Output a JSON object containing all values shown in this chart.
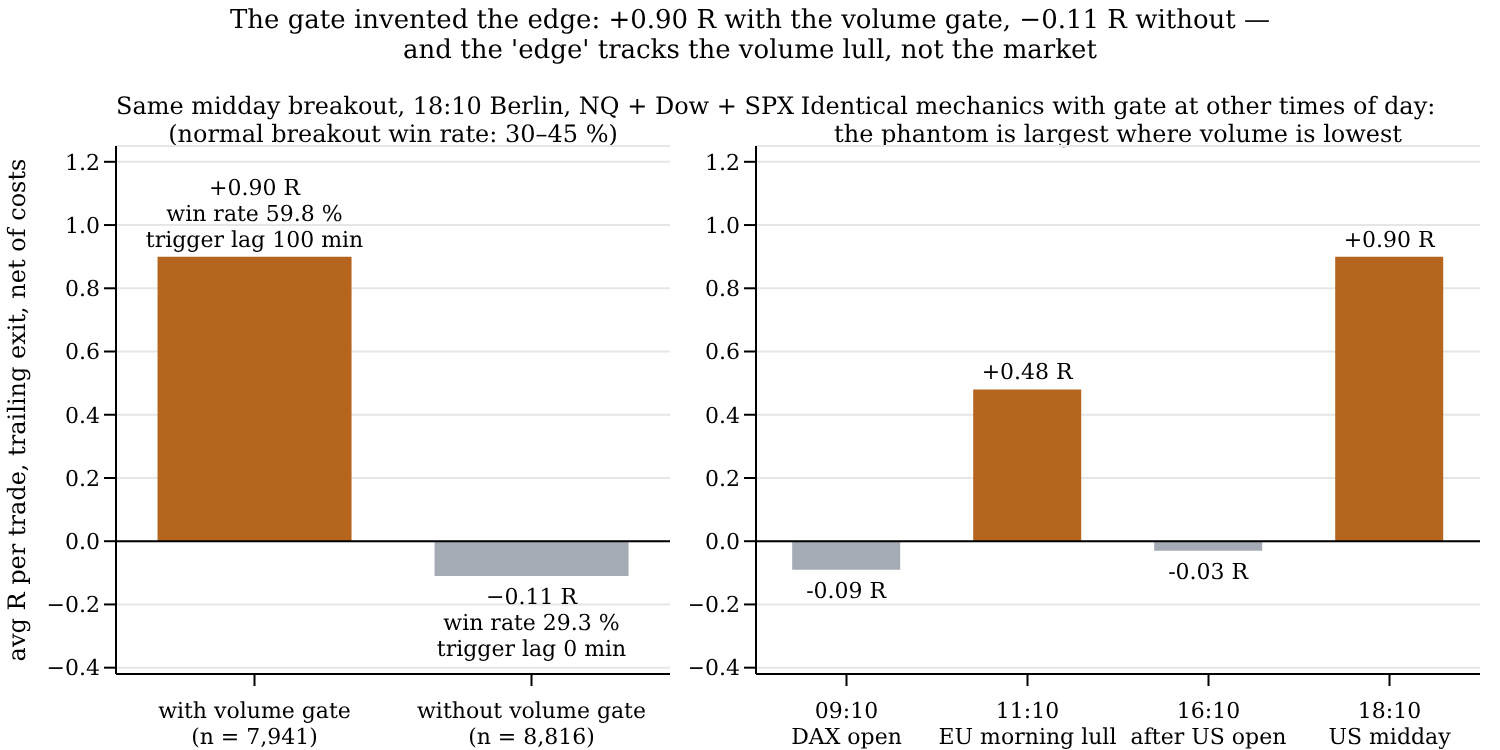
{
  "chart_data": [
    {
      "type": "bar",
      "title": "The gate invented the edge: +0.90 R with the volume gate, −0.11 R without —\nand the 'edge' tracks the volume lull, not the market",
      "subtitle": "Same midday breakout, 18:10 Berlin, NQ + Dow + SPX\n(normal breakout win rate: 30–45 %)",
      "ylabel": "avg R per trade, trailing exit, net of costs",
      "categories": [
        "with volume gate\n(n = 7,941)",
        "without volume gate\n(n = 8,816)"
      ],
      "values": [
        0.9,
        -0.11
      ],
      "colors": [
        "#b5651d",
        "#a4abb4"
      ],
      "value_labels": [
        "+0.90 R\nwin rate 59.8 %\ntrigger lag 100 min",
        "−0.11 R\nwin rate 29.3 %\ntrigger lag 0 min"
      ],
      "ylim": [
        -0.42,
        1.25
      ],
      "yticks": [
        {
          "value": -0.4,
          "label": "−0.4"
        },
        {
          "value": -0.2,
          "label": "−0.2"
        },
        {
          "value": 0,
          "label": "0.0"
        },
        {
          "value": 0.2,
          "label": "0.2"
        },
        {
          "value": 0.4,
          "label": "0.4"
        },
        {
          "value": 0.6,
          "label": "0.6"
        },
        {
          "value": 0.8,
          "label": "0.8"
        },
        {
          "value": 1.0,
          "label": "1.0"
        },
        {
          "value": 1.2,
          "label": "1.2"
        }
      ],
      "grid": "y",
      "ref_lines": [
        {
          "axis": "y",
          "value": 0,
          "color": "#000000"
        }
      ]
    },
    {
      "type": "bar",
      "title": "Identical mechanics with gate at other times of day:\nthe phantom is largest where volume is lowest",
      "categories": [
        "09:10\nDAX open",
        "11:10\nEU morning lull",
        "16:10\nafter US open",
        "18:10\nUS midday"
      ],
      "values": [
        -0.09,
        0.48,
        -0.03,
        0.9
      ],
      "colors": [
        "#a4abb4",
        "#b5651d",
        "#a4abb4",
        "#b5651d"
      ],
      "value_labels": [
        "-0.09 R",
        "+0.48 R",
        "-0.03 R",
        "+0.90 R"
      ],
      "ylim": [
        -0.42,
        1.25
      ],
      "yticks": [
        {
          "value": -0.4,
          "label": "−0.4"
        },
        {
          "value": -0.2,
          "label": "−0.2"
        },
        {
          "value": 0,
          "label": "0.0"
        },
        {
          "value": 0.2,
          "label": "0.2"
        },
        {
          "value": 0.4,
          "label": "0.4"
        },
        {
          "value": 0.6,
          "label": "0.6"
        },
        {
          "value": 0.8,
          "label": "0.8"
        },
        {
          "value": 1.0,
          "label": "1.0"
        },
        {
          "value": 1.2,
          "label": "1.2"
        }
      ],
      "grid": "y",
      "ref_lines": [
        {
          "axis": "y",
          "value": 0,
          "color": "#000000"
        }
      ]
    }
  ]
}
